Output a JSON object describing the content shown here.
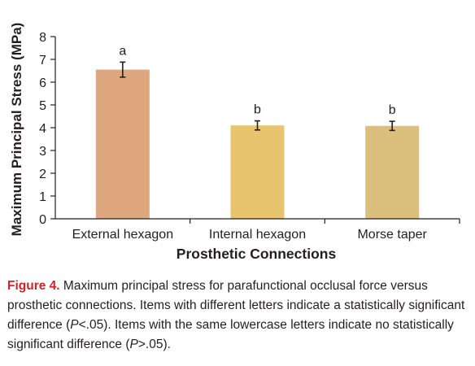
{
  "chart_data": {
    "type": "bar",
    "xlabel": "Prosthetic Connections",
    "ylabel": "Maximum Principal Stress (MPa)",
    "ylim": [
      0,
      8
    ],
    "yticks": [
      "0",
      "1",
      "2",
      "3",
      "4",
      "5",
      "6",
      "7",
      "8"
    ],
    "categories": [
      "External hexagon",
      "Internal hexagon",
      "Morse taper"
    ],
    "values": [
      6.55,
      4.1,
      4.08
    ],
    "errors": [
      0.33,
      0.2,
      0.2
    ],
    "annotations": [
      "a",
      "b",
      "b"
    ],
    "colors": [
      "#dfa77e",
      "#e8c46e",
      "#dcbe7d"
    ],
    "grid": false
  },
  "caption": {
    "label": "Figure 4.",
    "text1": " Maximum principal stress for parafunctional occlusal force versus prosthetic connections. Items with different letters indicate a statistically significant difference (",
    "p1": "P",
    "text2": "<.05). Items with the same lowercase letters indicate no statistically significant difference (",
    "p2": "P",
    "text3": ">.05)."
  }
}
